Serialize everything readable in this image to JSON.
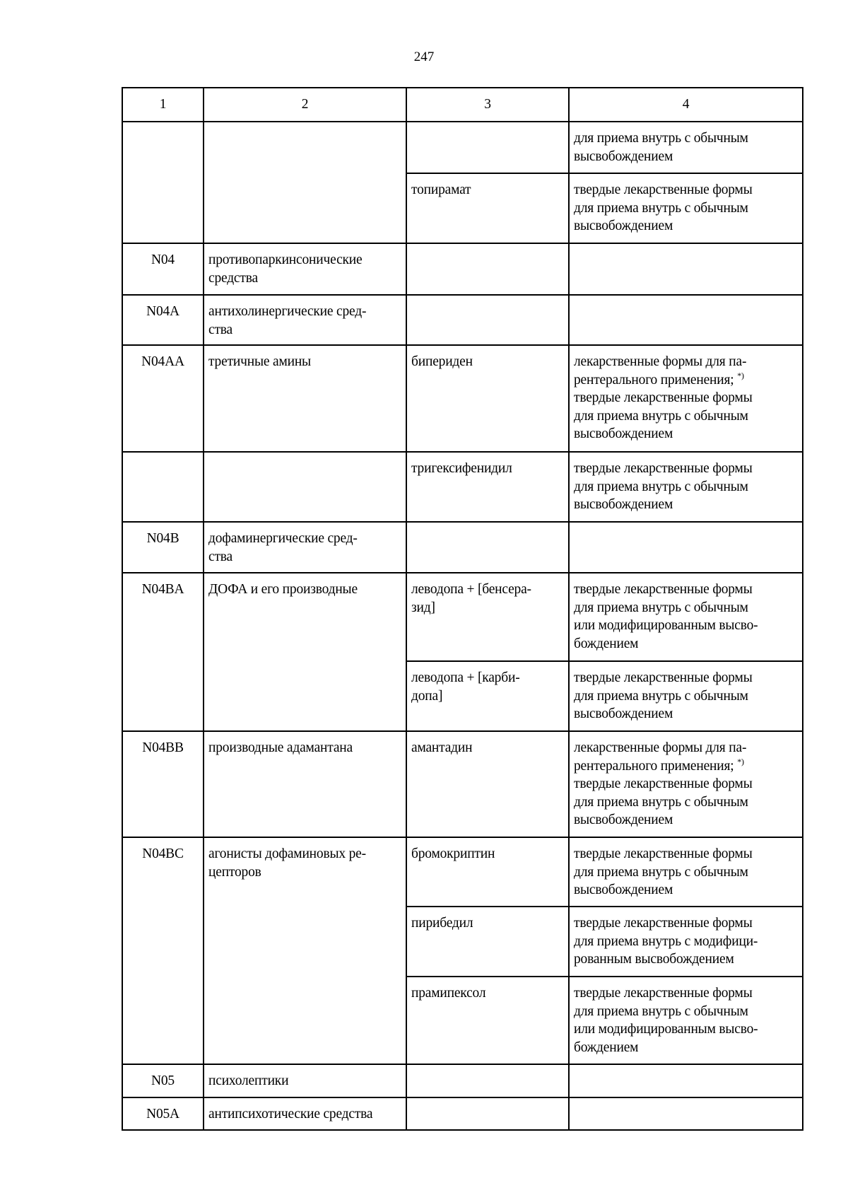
{
  "page_number": "247",
  "table": {
    "headers": [
      "1",
      "2",
      "3",
      "4"
    ],
    "rows": [
      {
        "code": "",
        "group": "",
        "group_rowspan": 2,
        "drug": "",
        "form": [
          "для приема внутрь с обычным",
          "высвобождением"
        ],
        "h": 73
      },
      {
        "skip_group": true,
        "drug": "топирамат",
        "form": [
          "твердые лекарственные формы",
          "для приема внутрь с обычным",
          "высвобождением"
        ],
        "h": 99
      },
      {
        "code": "N04",
        "group": "противопаркинсонические\nсредства",
        "drug": "",
        "form": [],
        "h": 73
      },
      {
        "code": "N04A",
        "group": "антихолинергические сред-\nства",
        "drug": "",
        "form": [],
        "h": 71
      },
      {
        "code": "N04AA",
        "group": "третичные амины",
        "drug": "бипериден",
        "form": [
          "лекарственные формы для па-",
          "рентерального применения;",
          "твердые лекарственные формы",
          "для приема внутрь с обычным",
          "высвобождением"
        ],
        "sup_line": 1,
        "sup": "*)",
        "h": 151
      },
      {
        "code": "",
        "group": "",
        "drug": "тригексифенидил",
        "form": [
          "твердые лекарственные формы",
          "для приема внутрь с обычным",
          "высвобождением"
        ],
        "h": 99
      },
      {
        "code": "N04B",
        "group": "дофаминергические сред-\nства",
        "drug": "",
        "form": [],
        "h": 72
      },
      {
        "code": "N04BA",
        "group": "ДОФА и его производные",
        "group_rowspan": 2,
        "drug": "леводопа + [бенсера-\nзид]",
        "form": [
          "твердые лекарственные формы",
          "для приема внутрь с обычным",
          "или модифицированным высво-",
          "бождением"
        ],
        "h": 125
      },
      {
        "skip_group": true,
        "drug": "леводопа + [карби-\nдопа]",
        "form": [
          "твердые лекарственные формы",
          "для приема внутрь с обычным",
          "высвобождением"
        ],
        "h": 99
      },
      {
        "code": "N04BB",
        "group": "производные адамантана",
        "drug": "амантадин",
        "form": [
          "лекарственные формы для па-",
          "рентерального применения;",
          "твердые лекарственные формы",
          "для приема внутрь с обычным",
          "высвобождением"
        ],
        "sup_line": 1,
        "sup": "*)",
        "h": 150
      },
      {
        "code": "N04BC",
        "group": "агонисты дофаминовых ре-\nцепторов",
        "group_rowspan": 3,
        "drug": "бромокриптин",
        "form": [
          "твердые лекарственные формы",
          "для приема внутрь с обычным",
          "высвобождением"
        ],
        "h": 98
      },
      {
        "skip_group": true,
        "drug": "пирибедил",
        "form": [
          "твердые лекарственные формы",
          "для приема внутрь с модифици-",
          "рованным высвобождением"
        ],
        "h": 99
      },
      {
        "skip_group": true,
        "drug": "прамипексол",
        "form": [
          "твердые лекарственные формы",
          "для приема внутрь с обычным",
          "или модифицированным высво-",
          "бождением"
        ],
        "h": 124
      },
      {
        "code": "N05",
        "group": "психолептики",
        "drug": "",
        "form": [],
        "h": 47
      },
      {
        "code": "N05A",
        "group": "антипсихотические средства",
        "drug": "",
        "form": [],
        "h": 46
      }
    ]
  }
}
